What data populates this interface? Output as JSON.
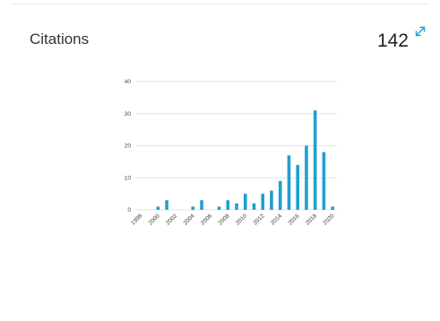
{
  "header": {
    "title": "Citations",
    "total": "142"
  },
  "icons": {
    "expand": "expand-arrows-icon"
  },
  "colors": {
    "bar": "#1e9fd0",
    "grid": "#e6e6e6",
    "accent": "#1e9fd0"
  },
  "chart_data": {
    "type": "bar",
    "title": "",
    "xlabel": "",
    "ylabel": "",
    "categories": [
      "1998",
      "1999",
      "2000",
      "2001",
      "2002",
      "2003",
      "2004",
      "2005",
      "2006",
      "2007",
      "2008",
      "2009",
      "2010",
      "2011",
      "2012",
      "2013",
      "2014",
      "2015",
      "2016",
      "2017",
      "2018",
      "2019",
      "2020"
    ],
    "values": [
      0,
      0,
      1,
      3,
      0,
      0,
      1,
      3,
      0,
      1,
      3,
      2,
      5,
      2,
      5,
      6,
      9,
      17,
      14,
      20,
      31,
      18,
      1
    ],
    "x_tick_labels": [
      "1998",
      "2000",
      "2002",
      "2004",
      "2006",
      "2008",
      "2010",
      "2012",
      "2014",
      "2016",
      "2018",
      "2020"
    ],
    "y_ticks": [
      0,
      10,
      20,
      30,
      40
    ],
    "ylim": [
      0,
      40
    ],
    "grid": true,
    "legend": "none"
  }
}
